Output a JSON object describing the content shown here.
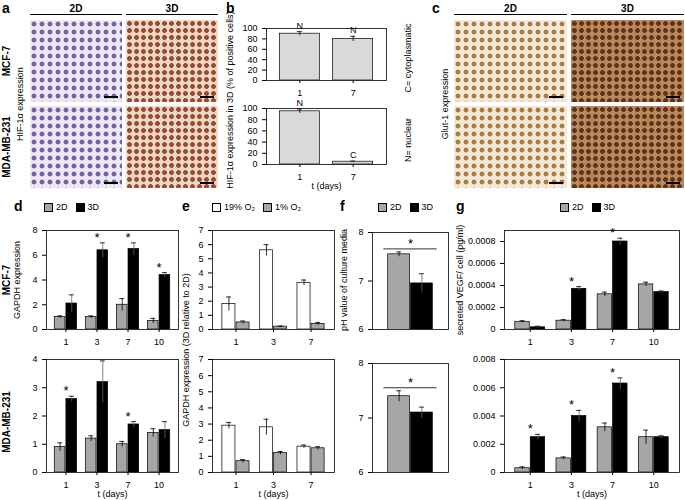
{
  "figure": {
    "rows": [
      "MCF-7",
      "MDA-MB-231"
    ]
  },
  "image_panels": [
    {
      "panel": "a",
      "columns": [
        "2D",
        "3D"
      ],
      "rows": [
        "MCF-7",
        "MDA-MB-231"
      ],
      "label": "HIF-1α expression"
    },
    {
      "panel": "c",
      "columns": [
        "2D",
        "3D"
      ],
      "label": "Glut-1 expression"
    }
  ],
  "chart_data": [
    {
      "panel": "b",
      "type": "bar",
      "ylabel": "HIF-1α expression in 3D (% of positive cells)",
      "categories": [
        "1",
        "7"
      ],
      "color": "#d9d9d9",
      "values": [
        90,
        80
      ],
      "errors": [
        4,
        5
      ],
      "bar_labels": [
        "N",
        "N"
      ],
      "ylim": [
        0,
        100
      ],
      "yticks": [
        0,
        20,
        40,
        60,
        80,
        100
      ]
    },
    {
      "type": "bar",
      "xlabel": "t (days)",
      "categories": [
        "1",
        "7"
      ],
      "color": "#d9d9d9",
      "values": [
        95,
        5
      ],
      "errors": [
        4,
        1
      ],
      "bar_labels": [
        "N",
        "C"
      ],
      "ylim": [
        0,
        100
      ],
      "yticks": [
        0,
        20,
        40,
        60,
        80,
        100
      ],
      "annotations": [
        "C= cytoplasmatic",
        "N= nuclear"
      ]
    },
    {
      "panel": "d",
      "type": "bar",
      "ylabel": "GAPDH expression",
      "legend": "top",
      "categories": [
        "1",
        "3",
        "7",
        "10"
      ],
      "series": [
        {
          "name": "2D",
          "color": "#a6a6a6",
          "values": [
            1.0,
            1.0,
            2.0,
            0.7
          ],
          "errors": [
            0.1,
            0.1,
            0.5,
            0.2
          ]
        },
        {
          "name": "3D",
          "color": "#000000",
          "values": [
            2.1,
            6.4,
            6.5,
            4.4
          ],
          "errors": [
            0.7,
            0.6,
            0.5,
            0.2
          ]
        }
      ],
      "significant": [
        false,
        true,
        true,
        true
      ],
      "significance_mark": "*",
      "ylim": [
        0,
        8
      ],
      "yticks": [
        0,
        2,
        4,
        6,
        8
      ]
    },
    {
      "type": "bar",
      "xlabel": "t (days)",
      "categories": [
        "1",
        "3",
        "7",
        "10"
      ],
      "series": [
        {
          "name": "2D",
          "color": "#a6a6a6",
          "values": [
            0.9,
            1.2,
            1.0,
            1.4
          ],
          "errors": [
            0.15,
            0.1,
            0.1,
            0.15
          ]
        },
        {
          "name": "3D",
          "color": "#000000",
          "values": [
            2.6,
            3.2,
            1.7,
            1.5
          ],
          "errors": [
            0.1,
            0.75,
            0.1,
            0.3
          ]
        }
      ],
      "significant": [
        true,
        false,
        true,
        false
      ],
      "significance_mark": "*",
      "ylim": [
        0,
        4
      ],
      "yticks": [
        0,
        1,
        2,
        3,
        4
      ]
    },
    {
      "panel": "e",
      "type": "bar",
      "legend": "top",
      "categories": [
        "1",
        "3",
        "7"
      ],
      "series": [
        {
          "name": "19% O₂",
          "color": "#ffffff",
          "values": [
            1.8,
            5.6,
            3.3
          ],
          "errors": [
            0.5,
            0.4,
            0.2
          ]
        },
        {
          "name": "1% O₂",
          "color": "#a6a6a6",
          "values": [
            0.5,
            0.2,
            0.4
          ],
          "errors": [
            0.1,
            0.05,
            0.1
          ]
        }
      ],
      "ylim": [
        0,
        7
      ],
      "yticks": [
        0,
        1,
        2,
        3,
        4,
        5,
        6,
        7
      ]
    },
    {
      "type": "bar",
      "xlabel": "t (days)",
      "ylabel": "GAPDH expression (3D relative to 2D)",
      "categories": [
        "1",
        "3",
        "7"
      ],
      "series": [
        {
          "name": "19% O₂",
          "color": "#ffffff",
          "values": [
            2.9,
            2.8,
            1.6
          ],
          "errors": [
            0.2,
            0.5,
            0.1
          ]
        },
        {
          "name": "1% O₂",
          "color": "#a6a6a6",
          "values": [
            0.7,
            1.2,
            1.5
          ],
          "errors": [
            0.1,
            0.1,
            0.1
          ]
        }
      ],
      "ylim": [
        0,
        7
      ],
      "yticks": [
        0,
        1,
        2,
        3,
        4,
        5,
        6,
        7
      ]
    },
    {
      "panel": "f",
      "type": "bar",
      "ylabel": "pH value of culture media",
      "legend": "top",
      "categories": [
        null
      ],
      "series": [
        {
          "name": "2D",
          "color": "#a6a6a6",
          "values": [
            7.55
          ],
          "errors": [
            0.05
          ]
        },
        {
          "name": "3D",
          "color": "#000000",
          "values": [
            6.95
          ],
          "errors": [
            0.2
          ]
        }
      ],
      "significant": [
        true
      ],
      "significance_mark": "*",
      "ylim": [
        6,
        8
      ],
      "yticks": [
        6,
        7,
        8
      ]
    },
    {
      "type": "bar",
      "categories": [
        null
      ],
      "series": [
        {
          "name": "2D",
          "color": "#a6a6a6",
          "values": [
            7.4
          ],
          "errors": [
            0.1
          ]
        },
        {
          "name": "3D",
          "color": "#000000",
          "values": [
            7.1
          ],
          "errors": [
            0.1
          ]
        }
      ],
      "significant": [
        true
      ],
      "significance_mark": "*",
      "ylim": [
        6,
        8
      ],
      "yticks": [
        6,
        7,
        8
      ]
    },
    {
      "panel": "g",
      "type": "bar",
      "ylabel": "secreted VEGF/ cell (pg/ml)",
      "legend": "top",
      "categories": [
        "1",
        "3",
        "7",
        "10"
      ],
      "series": [
        {
          "name": "2D",
          "color": "#a6a6a6",
          "values": [
            7e-05,
            8e-05,
            0.00032,
            0.00041
          ],
          "errors": [
            1e-05,
            1e-05,
            2e-05,
            2e-05
          ]
        },
        {
          "name": "3D",
          "color": "#000000",
          "values": [
            2e-05,
            0.00037,
            0.0008,
            0.00034
          ],
          "errors": [
            1e-05,
            2e-05,
            3e-05,
            1e-05
          ]
        }
      ],
      "significant": [
        false,
        true,
        true,
        false
      ],
      "significance_mark": "*",
      "ylim": [
        0,
        0.0009
      ],
      "yticks": [
        0,
        0.0002,
        0.0004,
        0.0006,
        0.0008
      ]
    },
    {
      "type": "bar",
      "xlabel": "t (days)",
      "categories": [
        "1",
        "3",
        "7",
        "10"
      ],
      "series": [
        {
          "name": "2D",
          "color": "#a6a6a6",
          "values": [
            0.0003,
            0.001,
            0.0032,
            0.0025
          ],
          "errors": [
            0.0001,
            0.0001,
            0.0003,
            0.0005
          ]
        },
        {
          "name": "3D",
          "color": "#000000",
          "values": [
            0.0025,
            0.004,
            0.0063,
            0.0025
          ],
          "errors": [
            0.0002,
            0.0004,
            0.0004,
            0.0001
          ]
        }
      ],
      "significant": [
        true,
        true,
        true,
        false
      ],
      "significance_mark": "*",
      "ylim": [
        0,
        0.008
      ],
      "yticks": [
        0,
        0.002,
        0.004,
        0.006,
        0.008
      ]
    }
  ]
}
